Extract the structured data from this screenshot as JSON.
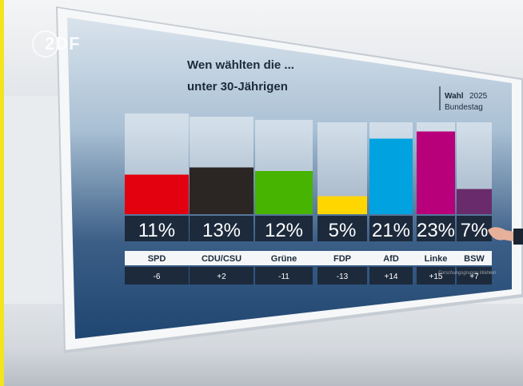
{
  "broadcaster": {
    "logo": "2DF"
  },
  "header": {
    "title_line1": "Wen wählten die ...",
    "title_line2": "unter 30-Jährigen",
    "badge_bold": "Wahl",
    "badge_year": "2025",
    "badge_sub": "Bundestag"
  },
  "footer": {
    "source": "Forschungsgruppe Wahlen"
  },
  "chart_data": {
    "type": "bar",
    "categories": [
      "SPD",
      "CDU/CSU",
      "Grüne",
      "FDP",
      "AfD",
      "Linke",
      "BSW"
    ],
    "values": [
      11,
      13,
      12,
      5,
      21,
      23,
      7
    ],
    "value_labels": [
      "11%",
      "13%",
      "12%",
      "5%",
      "21%",
      "23%",
      "7%"
    ],
    "changes": [
      "-6",
      "+2",
      "-11",
      "-13",
      "+14",
      "+15",
      "+7"
    ],
    "colors": [
      "#e3000f",
      "#2b2523",
      "#46b400",
      "#ffd600",
      "#00a2df",
      "#b8007a",
      "#6a2b6c"
    ],
    "ylim": [
      0,
      25
    ],
    "grid": false,
    "legend": "none"
  }
}
